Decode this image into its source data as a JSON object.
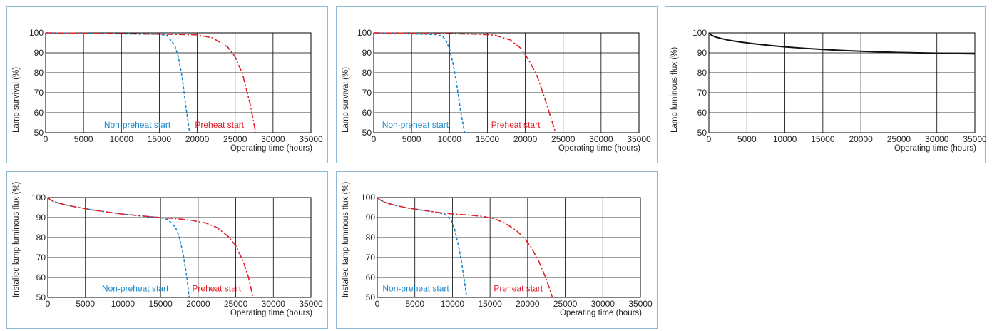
{
  "colors": {
    "non_preheat": "#1b87c9",
    "preheat": "#e0202a",
    "flux": "#111111",
    "panel_border": "#8fb8d2"
  },
  "chart_data": [
    {
      "type": "line",
      "xlabel": "Operating time (hours)",
      "ylabel": "Lamp survival  (%)",
      "xlim": [
        0,
        35000
      ],
      "ylim": [
        50,
        100
      ],
      "xticks": [
        0,
        5000,
        10000,
        15000,
        20000,
        25000,
        30000,
        35000
      ],
      "yticks": [
        50,
        60,
        70,
        80,
        90,
        100
      ],
      "grid": true,
      "series": [
        {
          "name": "Non-preheat start",
          "style": "dashed",
          "color_key": "non_preheat",
          "x": [
            0,
            5000,
            10000,
            15000,
            16000,
            17000,
            17500,
            18000,
            18500,
            19000
          ],
          "y": [
            100,
            99.7,
            99.5,
            99.3,
            98.7,
            94,
            88,
            78,
            63,
            50
          ]
        },
        {
          "name": "Preheat start",
          "style": "dashdot",
          "color_key": "preheat",
          "x": [
            0,
            5000,
            10000,
            15000,
            20000,
            22000,
            24000,
            25000,
            26000,
            27000,
            27700
          ],
          "y": [
            100,
            99.8,
            99.6,
            99.4,
            99,
            97.5,
            93,
            88,
            79,
            64,
            50
          ]
        }
      ],
      "annotations": [
        {
          "text": "Non-preheat start",
          "x": 7700,
          "y": 52.5,
          "color_key": "non_preheat"
        },
        {
          "text": "Preheat start",
          "x": 19700,
          "y": 52.5,
          "color_key": "preheat"
        }
      ]
    },
    {
      "type": "line",
      "xlabel": "Operating time (hours)",
      "ylabel": "Lamp survival  (%)",
      "xlim": [
        0,
        35000
      ],
      "ylim": [
        50,
        100
      ],
      "xticks": [
        0,
        5000,
        10000,
        15000,
        20000,
        25000,
        30000,
        35000
      ],
      "yticks": [
        50,
        60,
        70,
        80,
        90,
        100
      ],
      "grid": true,
      "series": [
        {
          "name": "Non-preheat start",
          "style": "dashed",
          "color_key": "non_preheat",
          "x": [
            0,
            3000,
            6000,
            8000,
            9000,
            9500,
            10000,
            10500,
            11000,
            11500,
            12000
          ],
          "y": [
            100,
            99.7,
            99.4,
            99.2,
            98.5,
            96.5,
            92,
            84,
            73,
            60,
            50
          ]
        },
        {
          "name": "Preheat start",
          "style": "dashdot",
          "color_key": "preheat",
          "x": [
            0,
            5000,
            10000,
            14000,
            16000,
            18000,
            19500,
            20500,
            21500,
            22500,
            23500,
            24000
          ],
          "y": [
            100,
            99.8,
            99.6,
            99.3,
            98.8,
            96.5,
            92,
            86,
            79,
            68,
            56,
            50
          ]
        }
      ],
      "annotations": [
        {
          "text": "Non-preheat start",
          "x": 1100,
          "y": 52.5,
          "color_key": "non_preheat"
        },
        {
          "text": "Preheat start",
          "x": 15500,
          "y": 52.5,
          "color_key": "preheat"
        }
      ]
    },
    {
      "type": "line",
      "xlabel": "Operating time (hours)",
      "ylabel": "Lamp luminous flux  (%)",
      "xlim": [
        0,
        35000
      ],
      "ylim": [
        50,
        100
      ],
      "xticks": [
        0,
        5000,
        10000,
        15000,
        20000,
        25000,
        30000,
        35000
      ],
      "yticks": [
        50,
        60,
        70,
        80,
        90,
        100
      ],
      "grid": true,
      "series": [
        {
          "name": "",
          "style": "solid",
          "color_key": "flux",
          "x": [
            0,
            300,
            800,
            1500,
            2500,
            4000,
            6000,
            8000,
            10000,
            12500,
            15000,
            17500,
            20000,
            25000,
            30000,
            35000
          ],
          "y": [
            100,
            99,
            98,
            97.3,
            96.4,
            95.5,
            94.5,
            93.7,
            93,
            92.3,
            91.7,
            91.2,
            90.8,
            90.2,
            89.8,
            89.5
          ]
        }
      ],
      "annotations": []
    },
    {
      "type": "line",
      "xlabel": "Operating time (hours)",
      "ylabel": "Installed lamp luminous flux  (%)",
      "xlim": [
        0,
        35000
      ],
      "ylim": [
        50,
        100
      ],
      "xticks": [
        0,
        5000,
        10000,
        15000,
        20000,
        25000,
        30000,
        35000
      ],
      "yticks": [
        50,
        60,
        70,
        80,
        90,
        100
      ],
      "grid": true,
      "series": [
        {
          "name": "Non-preheat start",
          "style": "dashed",
          "color_key": "non_preheat",
          "x": [
            0,
            300,
            800,
            1500,
            2500,
            4000,
            6000,
            8000,
            10000,
            12000,
            14000,
            15000,
            16000,
            17000,
            17500,
            18000,
            18500,
            18800
          ],
          "y": [
            100,
            99,
            98,
            97.2,
            96.2,
            95.1,
            93.8,
            92.7,
            91.7,
            91,
            90.3,
            90,
            89,
            85,
            80,
            72,
            60,
            50
          ]
        },
        {
          "name": "Preheat start",
          "style": "dashdot",
          "color_key": "preheat",
          "x": [
            0,
            300,
            800,
            1500,
            2500,
            4000,
            6000,
            8000,
            10000,
            12000,
            14000,
            15000,
            17000,
            19000,
            21000,
            22500,
            24000,
            25000,
            26000,
            26700,
            27300
          ],
          "y": [
            100,
            99,
            98,
            97.2,
            96.2,
            95.1,
            93.8,
            92.7,
            91.7,
            91,
            90.3,
            90,
            89.5,
            88.7,
            87.3,
            85,
            80.5,
            76,
            68,
            60,
            50
          ]
        }
      ],
      "annotations": [
        {
          "text": "Non-preheat start",
          "x": 7200,
          "y": 53,
          "color_key": "non_preheat"
        },
        {
          "text": "Preheat start",
          "x": 19200,
          "y": 53,
          "color_key": "preheat"
        }
      ]
    },
    {
      "type": "line",
      "xlabel": "Operating time (hours)",
      "ylabel": "Installed lamp luminous flux  (%)",
      "xlim": [
        0,
        35000
      ],
      "ylim": [
        50,
        100
      ],
      "xticks": [
        0,
        5000,
        10000,
        15000,
        20000,
        25000,
        30000,
        35000
      ],
      "yticks": [
        50,
        60,
        70,
        80,
        90,
        100
      ],
      "grid": true,
      "series": [
        {
          "name": "Non-preheat start",
          "style": "dashed",
          "color_key": "non_preheat",
          "x": [
            0,
            300,
            800,
            1500,
            2500,
            4000,
            6000,
            8000,
            9000,
            9800,
            10300,
            10800,
            11200,
            11600,
            11900
          ],
          "y": [
            100,
            99,
            98,
            97,
            96,
            94.8,
            93.7,
            92.6,
            91.6,
            89,
            84,
            76,
            68,
            58,
            50
          ]
        },
        {
          "name": "Preheat start",
          "style": "dashdot",
          "color_key": "preheat",
          "x": [
            0,
            300,
            800,
            1500,
            2500,
            4000,
            6000,
            8000,
            10000,
            12000,
            14000,
            15500,
            17000,
            18500,
            19500,
            20500,
            21500,
            22500,
            23300
          ],
          "y": [
            100,
            99,
            98,
            97,
            96,
            94.8,
            93.7,
            92.6,
            91.8,
            91.3,
            90.6,
            89.5,
            87.2,
            83.5,
            80,
            75,
            68,
            59,
            50
          ]
        }
      ],
      "annotations": [
        {
          "text": "Non-preheat start",
          "x": 700,
          "y": 53,
          "color_key": "non_preheat"
        },
        {
          "text": "Preheat start",
          "x": 15500,
          "y": 53,
          "color_key": "preheat"
        }
      ]
    }
  ]
}
